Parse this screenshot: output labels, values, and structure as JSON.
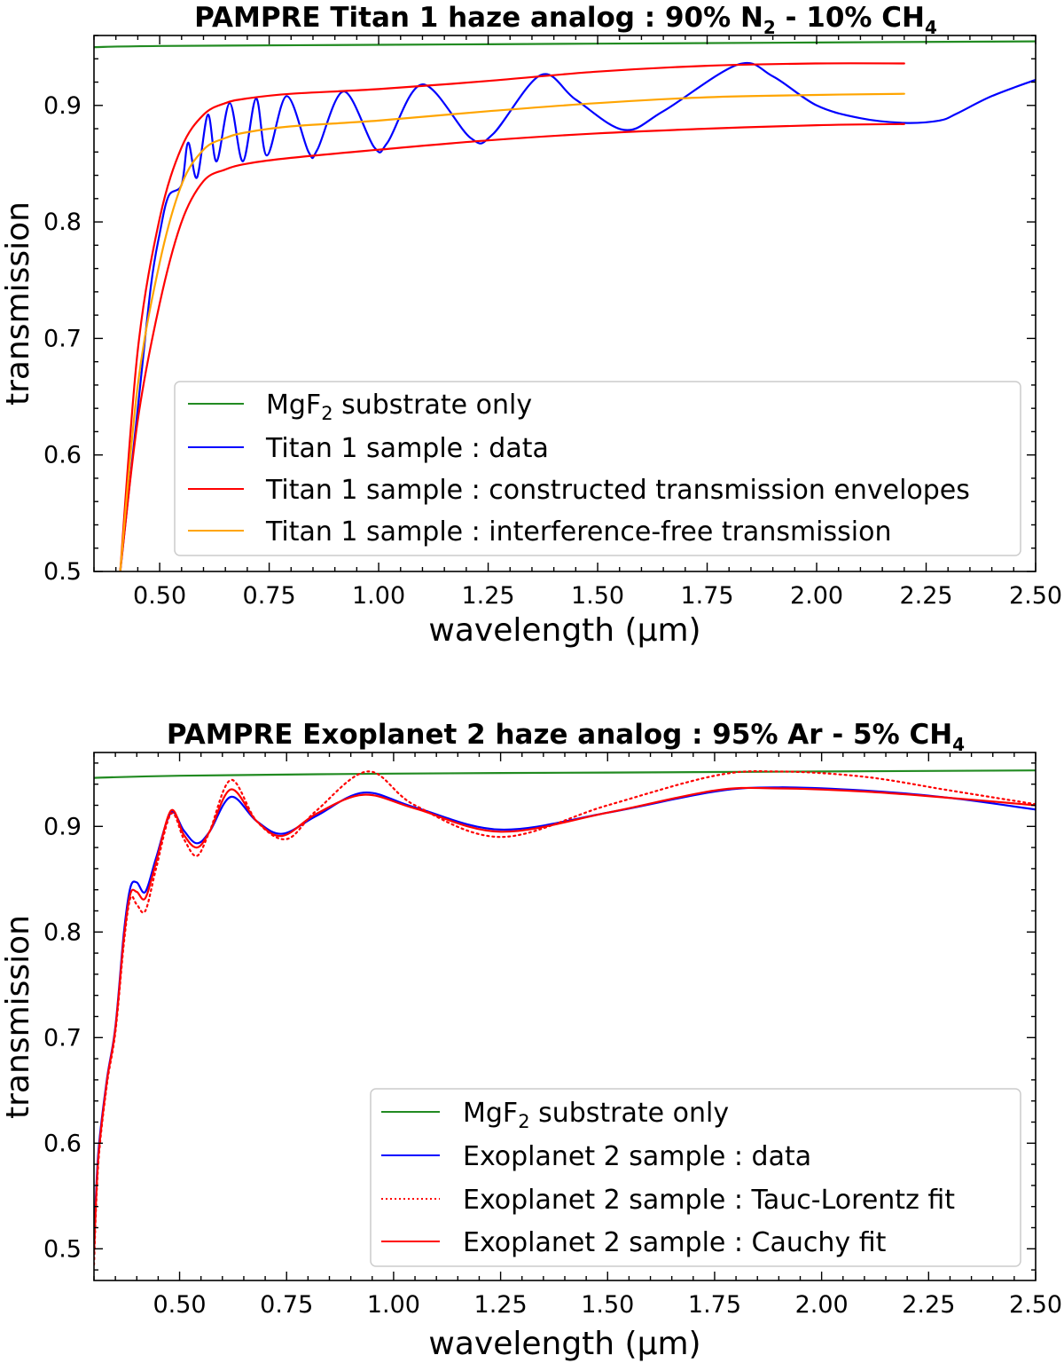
{
  "chart_data": [
    {
      "type": "line",
      "title": "PAMPRE Titan 1 haze analog : 90% N",
      "title_sub1": "2",
      "title_mid": " - 10% CH",
      "title_sub2": "4",
      "xlabel": "wavelength (μm)",
      "ylabel": "transmission",
      "xlim": [
        0.35,
        2.5
      ],
      "ylim": [
        0.5,
        0.96
      ],
      "xticks": [
        "0.50",
        "0.75",
        "1.00",
        "1.25",
        "1.50",
        "1.75",
        "2.00",
        "2.25",
        "2.50"
      ],
      "yticks": [
        "0.5",
        "0.6",
        "0.7",
        "0.8",
        "0.9"
      ],
      "legend_position": "lower-right",
      "series": [
        {
          "name": "MgF2 substrate only",
          "label_pre": "MgF",
          "label_sub": "2",
          "label_post": " substrate only",
          "color": "#228B22",
          "style": "solid",
          "x": [
            0.35,
            0.5,
            1.0,
            1.5,
            2.0,
            2.5
          ],
          "y": [
            0.95,
            0.951,
            0.952,
            0.953,
            0.954,
            0.955
          ]
        },
        {
          "name": "Titan 1 sample : data",
          "label_pre": "Titan 1 sample : data",
          "label_sub": "",
          "label_post": "",
          "color": "#0000FF",
          "style": "solid",
          "x": [
            0.41,
            0.45,
            0.48,
            0.5,
            0.52,
            0.55,
            0.565,
            0.585,
            0.61,
            0.63,
            0.66,
            0.69,
            0.72,
            0.745,
            0.79,
            0.84,
            0.86,
            0.92,
            0.99,
            1.02,
            1.1,
            1.21,
            1.26,
            1.37,
            1.45,
            1.56,
            1.65,
            1.82,
            1.9,
            2.0,
            2.1,
            2.2,
            2.28,
            2.32,
            2.4,
            2.5
          ],
          "y": [
            0.5,
            0.64,
            0.745,
            0.79,
            0.822,
            0.832,
            0.868,
            0.838,
            0.892,
            0.852,
            0.902,
            0.852,
            0.906,
            0.857,
            0.908,
            0.86,
            0.862,
            0.912,
            0.864,
            0.868,
            0.918,
            0.872,
            0.875,
            0.926,
            0.905,
            0.879,
            0.895,
            0.935,
            0.925,
            0.9,
            0.889,
            0.885,
            0.887,
            0.893,
            0.908,
            0.922
          ]
        },
        {
          "name": "Titan 1 sample : constructed transmission envelopes",
          "label_pre": "Titan 1 sample : constructed transmission envelopes",
          "label_sub": "",
          "label_post": "",
          "color": "#FF0000",
          "style": "solid",
          "x": [
            0.41,
            0.45,
            0.5,
            0.55,
            0.6,
            0.65,
            0.7,
            0.8,
            1.0,
            1.25,
            1.5,
            1.75,
            2.0,
            2.2
          ],
          "y": [
            0.5,
            0.69,
            0.803,
            0.864,
            0.892,
            0.902,
            0.906,
            0.91,
            0.914,
            0.921,
            0.929,
            0.934,
            0.936,
            0.936
          ],
          "y_lower": [
            0.5,
            0.63,
            0.73,
            0.8,
            0.835,
            0.845,
            0.85,
            0.855,
            0.862,
            0.87,
            0.876,
            0.88,
            0.883,
            0.884
          ]
        },
        {
          "name": "Titan 1 sample : interference-free transmission",
          "label_pre": "Titan 1 sample : interference-free transmission",
          "label_sub": "",
          "label_post": "",
          "color": "#FFA500",
          "style": "solid",
          "x": [
            0.41,
            0.45,
            0.5,
            0.55,
            0.6,
            0.65,
            0.7,
            0.8,
            1.0,
            1.25,
            1.5,
            1.75,
            2.0,
            2.2
          ],
          "y": [
            0.5,
            0.66,
            0.765,
            0.832,
            0.862,
            0.872,
            0.877,
            0.882,
            0.887,
            0.895,
            0.902,
            0.907,
            0.909,
            0.91
          ]
        }
      ]
    },
    {
      "type": "line",
      "title": "PAMPRE Exoplanet 2 haze analog : 95% Ar - 5% CH",
      "title_sub1": "",
      "title_mid": "",
      "title_sub2": "4",
      "xlabel": "wavelength (μm)",
      "ylabel": "transmission",
      "xlim": [
        0.3,
        2.5
      ],
      "ylim": [
        0.47,
        0.97
      ],
      "xticks": [
        "0.50",
        "0.75",
        "1.00",
        "1.25",
        "1.50",
        "1.75",
        "2.00",
        "2.25",
        "2.50"
      ],
      "yticks": [
        "0.5",
        "0.6",
        "0.7",
        "0.8",
        "0.9"
      ],
      "legend_position": "lower-right",
      "series": [
        {
          "name": "MgF2 substrate only",
          "label_pre": "MgF",
          "label_sub": "2",
          "label_post": " substrate only",
          "color": "#228B22",
          "style": "solid",
          "x": [
            0.3,
            0.5,
            1.0,
            1.5,
            2.0,
            2.5
          ],
          "y": [
            0.946,
            0.948,
            0.95,
            0.951,
            0.952,
            0.953
          ]
        },
        {
          "name": "Exoplanet 2 sample : data",
          "label_pre": "Exoplanet 2 sample : data",
          "label_sub": "",
          "label_post": "",
          "color": "#0000FF",
          "style": "solid",
          "x": [
            0.3,
            0.31,
            0.33,
            0.35,
            0.37,
            0.385,
            0.4,
            0.42,
            0.445,
            0.48,
            0.51,
            0.54,
            0.57,
            0.62,
            0.68,
            0.74,
            0.82,
            0.93,
            1.05,
            1.25,
            1.5,
            1.75,
            1.9,
            2.1,
            2.3,
            2.5
          ],
          "y": [
            0.505,
            0.59,
            0.66,
            0.71,
            0.8,
            0.842,
            0.847,
            0.838,
            0.87,
            0.913,
            0.896,
            0.884,
            0.895,
            0.928,
            0.905,
            0.893,
            0.91,
            0.932,
            0.918,
            0.897,
            0.913,
            0.933,
            0.937,
            0.934,
            0.927,
            0.916
          ]
        },
        {
          "name": "Exoplanet 2 sample : Tauc-Lorentz fit",
          "label_pre": "Exoplanet 2 sample : Tauc-Lorentz fit",
          "label_sub": "",
          "label_post": "",
          "color": "#FF0000",
          "style": "dotted",
          "x": [
            0.3,
            0.31,
            0.33,
            0.35,
            0.37,
            0.385,
            0.4,
            0.42,
            0.445,
            0.48,
            0.51,
            0.54,
            0.57,
            0.62,
            0.68,
            0.75,
            0.82,
            0.94,
            1.05,
            1.25,
            1.5,
            1.75,
            1.9,
            2.1,
            2.3,
            2.5
          ],
          "y": [
            0.485,
            0.58,
            0.655,
            0.705,
            0.79,
            0.832,
            0.826,
            0.82,
            0.86,
            0.912,
            0.888,
            0.872,
            0.895,
            0.944,
            0.905,
            0.888,
            0.915,
            0.952,
            0.92,
            0.89,
            0.92,
            0.948,
            0.952,
            0.947,
            0.934,
            0.921
          ]
        },
        {
          "name": "Exoplanet 2 sample : Cauchy fit",
          "label_pre": "Exoplanet 2 sample : Cauchy fit",
          "label_sub": "",
          "label_post": "",
          "color": "#FF0000",
          "style": "solid",
          "x": [
            0.3,
            0.31,
            0.33,
            0.35,
            0.37,
            0.385,
            0.4,
            0.42,
            0.445,
            0.48,
            0.51,
            0.54,
            0.57,
            0.62,
            0.68,
            0.74,
            0.82,
            0.93,
            1.05,
            1.25,
            1.5,
            1.75,
            1.9,
            2.1,
            2.3,
            2.5
          ],
          "y": [
            0.495,
            0.585,
            0.658,
            0.708,
            0.795,
            0.836,
            0.838,
            0.832,
            0.866,
            0.915,
            0.892,
            0.88,
            0.895,
            0.935,
            0.905,
            0.891,
            0.912,
            0.93,
            0.917,
            0.895,
            0.913,
            0.934,
            0.936,
            0.933,
            0.927,
            0.92
          ]
        }
      ]
    }
  ]
}
